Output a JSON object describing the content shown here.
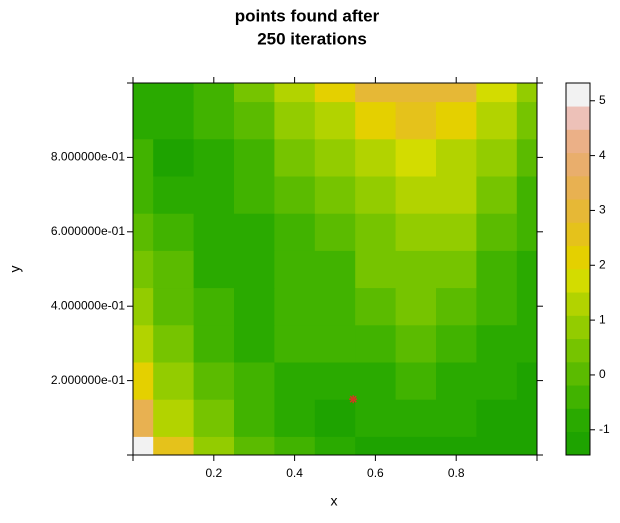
{
  "chart_data": {
    "type": "levelplot",
    "title": [
      "points found after",
      "250 iterations"
    ],
    "x_label": "x",
    "y_label": "y",
    "xlim": [
      0,
      1
    ],
    "ylim": [
      0,
      1
    ],
    "xticks": [
      0.2,
      0.4,
      0.6,
      0.8
    ],
    "yticks": [
      {
        "value": 0.2,
        "label": "2.000000e-01"
      },
      {
        "value": 0.4,
        "label": "4.000000e-01"
      },
      {
        "value": 0.6,
        "label": "6.000000e-01"
      },
      {
        "value": 0.8,
        "label": "8.000000e-01"
      }
    ],
    "x": [
      0,
      0.1,
      0.2,
      0.3,
      0.4,
      0.5,
      0.6,
      0.7,
      0.8,
      0.9,
      1
    ],
    "y": [
      0,
      0.1,
      0.2,
      0.3,
      0.4,
      0.5,
      0.6,
      0.7,
      0.8,
      0.9,
      1
    ],
    "z": [
      [
        5.0,
        2.5,
        1.0,
        0.2,
        -0.6,
        -1.0,
        -1.1,
        -1.1,
        -1.1,
        -1.1,
        -1.1
      ],
      [
        3.5,
        1.5,
        0.5,
        -0.2,
        -0.8,
        -1.1,
        -1.0,
        -0.9,
        -1.0,
        -1.2,
        -1.2
      ],
      [
        2.0,
        0.9,
        0.2,
        -0.5,
        -0.7,
        -0.8,
        -0.8,
        -0.6,
        -0.7,
        -1.0,
        -1.1
      ],
      [
        1.3,
        0.5,
        -0.2,
        -0.8,
        -0.4,
        -0.4,
        -0.3,
        -0.1,
        -0.3,
        -0.8,
        -1.0
      ],
      [
        0.8,
        0.2,
        -0.5,
        -0.8,
        -0.5,
        -0.3,
        0,
        0.3,
        0.1,
        -0.5,
        -0.9
      ],
      [
        0.4,
        -0.1,
        -0.7,
        -0.8,
        -0.5,
        -0.2,
        0.3,
        0.6,
        0.4,
        -0.2,
        -0.7
      ],
      [
        0,
        -0.4,
        -0.9,
        -0.7,
        -0.3,
        0.1,
        0.6,
        1.0,
        0.7,
        0.2,
        -0.5
      ],
      [
        -0.3,
        -0.8,
        -0.9,
        -0.5,
        0,
        0.5,
        1.0,
        1.4,
        1.1,
        0.5,
        -0.2
      ],
      [
        -0.6,
        -1.1,
        -0.8,
        -0.2,
        0.4,
        0.9,
        1.4,
        1.9,
        1.5,
        0.9,
        0.1
      ],
      [
        -0.8,
        -1.0,
        -0.5,
        0.1,
        0.8,
        1.4,
        2.0,
        2.5,
        2.1,
        1.3,
        0.5
      ],
      [
        -0.9,
        -0.8,
        -0.3,
        0.5,
        1.2,
        2.0,
        2.8,
        3.2,
        2.9,
        1.9,
        1.0
      ]
    ],
    "breaks": [
      -1.46,
      -1.036,
      -0.612,
      -0.188,
      0.236,
      0.66,
      1.084,
      1.508,
      1.932,
      2.356,
      2.78,
      3.204,
      3.628,
      4.052,
      4.476,
      4.9,
      5.324
    ],
    "colors": [
      "#1ea300",
      "#2aaa00",
      "#41b300",
      "#5bbb00",
      "#76c400",
      "#93cc00",
      "#b2d300",
      "#d3dc00",
      "#e4d000",
      "#e5c21b",
      "#e6b836",
      "#e8b151",
      "#e9ae6c",
      "#ebb087",
      "#edc1b8",
      "#f2f2f2"
    ],
    "colorkey_ticks": [
      -1,
      0,
      1,
      2,
      3,
      4,
      5
    ],
    "points": {
      "x": [
        0.545
      ],
      "y": [
        0.15
      ],
      "color": "#d23a20"
    }
  }
}
